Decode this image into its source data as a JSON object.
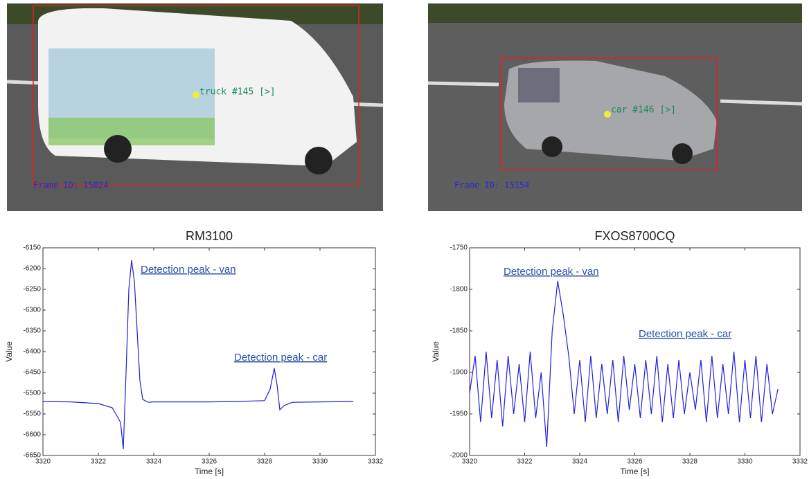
{
  "images": [
    {
      "label": "truck #145 [>]",
      "frame": "Frame ID: 15024"
    },
    {
      "label": "car #146 [>]",
      "frame": "Frame ID: 15154"
    }
  ],
  "chart_data": [
    {
      "type": "line",
      "title": "RM3100",
      "xlabel": "Time [s]",
      "ylabel": "Value",
      "color": "#1f1fd0",
      "annotations": [
        "Detection peak - van",
        "Detection peak - car"
      ],
      "x": [
        3320,
        3321,
        3322,
        3322.5,
        3322.8,
        3322.9,
        3323.0,
        3323.1,
        3323.2,
        3323.3,
        3323.4,
        3323.5,
        3323.6,
        3323.8,
        3324,
        3325,
        3326,
        3327,
        3328,
        3328.2,
        3328.35,
        3328.45,
        3328.55,
        3328.7,
        3329,
        3330,
        3331.2
      ],
      "values": [
        -6520,
        -6521,
        -6525,
        -6535,
        -6570,
        -6635,
        -6450,
        -6250,
        -6180,
        -6230,
        -6350,
        -6470,
        -6515,
        -6522,
        -6521,
        -6521,
        -6521,
        -6520,
        -6518,
        -6490,
        -6440,
        -6480,
        -6540,
        -6530,
        -6522,
        -6521,
        -6520
      ],
      "xlim": [
        3320,
        3332
      ],
      "xticks": [
        3320,
        3322,
        3324,
        3326,
        3328,
        3330,
        3332
      ],
      "ylim": [
        -6650,
        -6150
      ],
      "yticks": [
        -6650,
        -6600,
        -6550,
        -6500,
        -6450,
        -6400,
        -6350,
        -6300,
        -6250,
        -6200,
        -6150
      ]
    },
    {
      "type": "line",
      "title": "FXOS8700CQ",
      "xlabel": "Time [s]",
      "ylabel": "Value",
      "color": "#1f1fe0",
      "annotations": [
        "Detection peak - van",
        "Detection peak - car"
      ],
      "x": [
        3320,
        3320.2,
        3320.4,
        3320.6,
        3320.8,
        3321,
        3321.2,
        3321.4,
        3321.6,
        3321.8,
        3322,
        3322.2,
        3322.4,
        3322.6,
        3322.8,
        3323,
        3323.2,
        3323.4,
        3323.6,
        3323.8,
        3324,
        3324.2,
        3324.4,
        3324.6,
        3324.8,
        3325,
        3325.2,
        3325.4,
        3325.6,
        3325.8,
        3326,
        3326.2,
        3326.4,
        3326.6,
        3326.8,
        3327,
        3327.2,
        3327.4,
        3327.6,
        3327.8,
        3328,
        3328.2,
        3328.4,
        3328.6,
        3328.8,
        3329,
        3329.2,
        3329.4,
        3329.6,
        3329.8,
        3330,
        3330.2,
        3330.4,
        3330.6,
        3330.8,
        3331,
        3331.2
      ],
      "values": [
        -1925,
        -1880,
        -1960,
        -1875,
        -1955,
        -1885,
        -1965,
        -1880,
        -1950,
        -1890,
        -1960,
        -1875,
        -1955,
        -1900,
        -1990,
        -1850,
        -1790,
        -1830,
        -1880,
        -1950,
        -1885,
        -1960,
        -1880,
        -1955,
        -1890,
        -1950,
        -1885,
        -1960,
        -1880,
        -1945,
        -1890,
        -1955,
        -1885,
        -1950,
        -1880,
        -1960,
        -1890,
        -1955,
        -1885,
        -1950,
        -1900,
        -1945,
        -1885,
        -1960,
        -1880,
        -1955,
        -1890,
        -1950,
        -1875,
        -1960,
        -1885,
        -1955,
        -1880,
        -1960,
        -1890,
        -1950,
        -1920
      ],
      "xlim": [
        3320,
        3332
      ],
      "xticks": [
        3320,
        3322,
        3324,
        3326,
        3328,
        3330,
        3332
      ],
      "ylim": [
        -2000,
        -1750
      ],
      "yticks": [
        -2000,
        -1950,
        -1900,
        -1850,
        -1800,
        -1750
      ]
    }
  ]
}
